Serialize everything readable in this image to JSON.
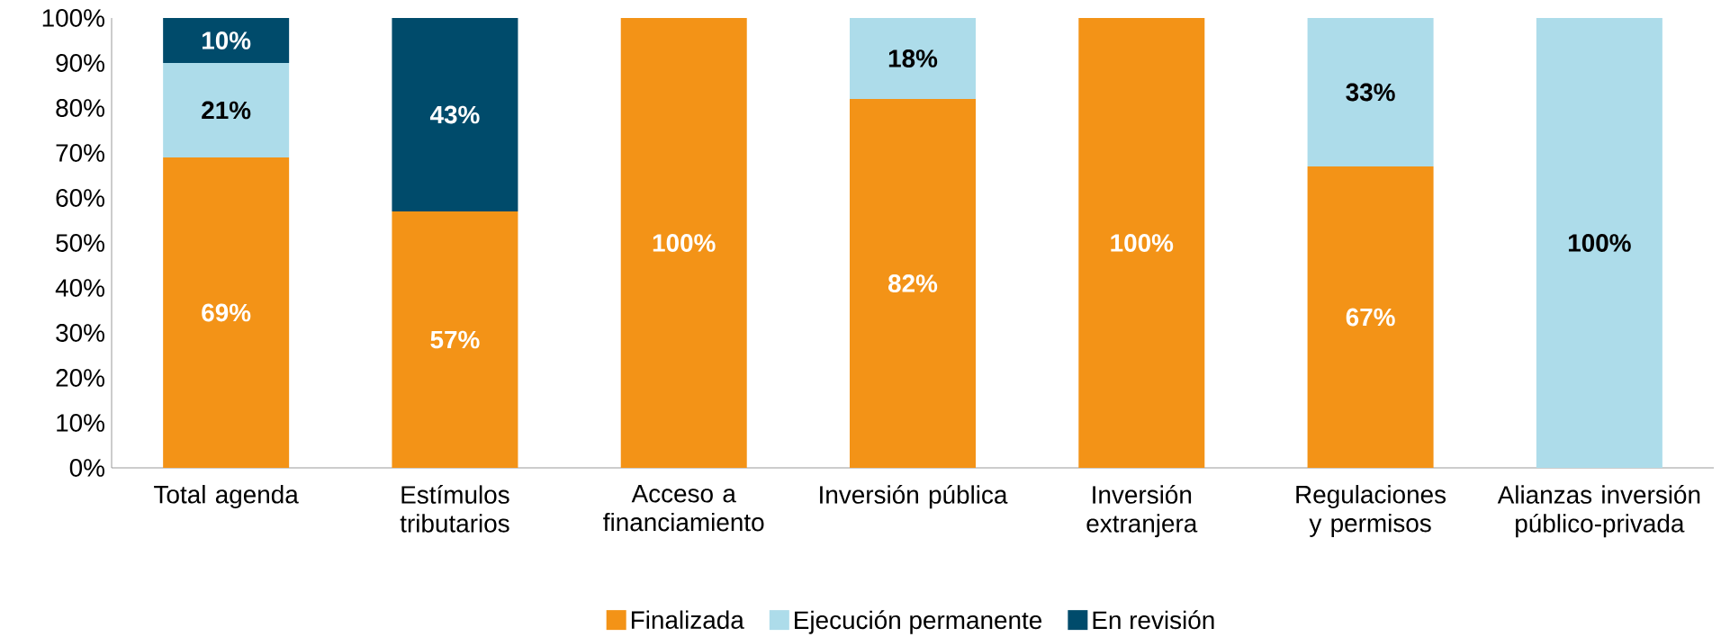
{
  "chart_data": {
    "type": "bar",
    "stacked": true,
    "legend": "bottom",
    "categories": [
      "Total agenda",
      "Estímulos tributarios",
      "Acceso a financiamiento",
      "Inversión pública",
      "Inversión extranjera",
      "Regulaciones y permisos",
      "Alianzas inversión público-privada"
    ],
    "series": [
      {
        "name": "Finalizada",
        "color": "#f39317",
        "values": [
          69,
          57,
          100,
          82,
          100,
          67,
          0
        ],
        "value_labels": [
          "69%",
          "57%",
          "100%",
          "82%",
          "100%",
          "67%",
          null
        ]
      },
      {
        "name": "Ejecución permanente",
        "color": "#addcea",
        "values": [
          21,
          0,
          0,
          18,
          0,
          33,
          100
        ],
        "value_labels": [
          "21%",
          null,
          null,
          "18%",
          null,
          "33%",
          "100%"
        ]
      },
      {
        "name": "En revisión",
        "color": "#004b6b",
        "values": [
          10,
          43,
          0,
          0,
          0,
          0,
          0
        ],
        "value_labels": [
          "10%",
          "43%",
          null,
          null,
          null,
          null,
          null
        ]
      }
    ],
    "ylim": [
      0,
      100
    ],
    "yticks": [
      {
        "value": 0,
        "label": "0%"
      },
      {
        "value": 10,
        "label": "10%"
      },
      {
        "value": 20,
        "label": "20%"
      },
      {
        "value": 30,
        "label": "30%"
      },
      {
        "value": 40,
        "label": "40%"
      },
      {
        "value": 50,
        "label": "50%"
      },
      {
        "value": 60,
        "label": "60%"
      },
      {
        "value": 70,
        "label": "70%"
      },
      {
        "value": 80,
        "label": "80%"
      },
      {
        "value": 90,
        "label": "90%"
      },
      {
        "value": 100,
        "label": "100%"
      }
    ]
  }
}
